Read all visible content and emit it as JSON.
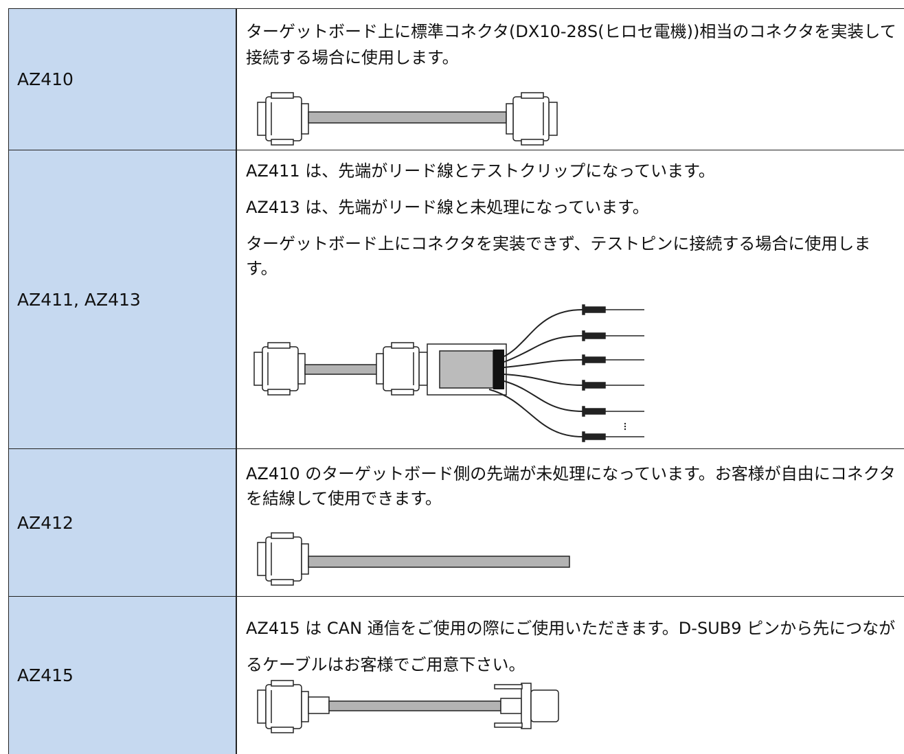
{
  "table": {
    "rows": [
      {
        "model": "AZ410",
        "paragraphs": [
          "ターゲットボード上に標準コネクタ(DX10-28S(ヒロセ電機))相当のコネクタを実装して接続する場合に使用します。"
        ]
      },
      {
        "model": "AZ411, AZ413",
        "paragraphs": [
          "AZ411 は、先端がリード線とテストクリップになっています。",
          "AZ413 は、先端がリード線と未処理になっています。",
          "ターゲットボード上にコネクタを実装できず、テストピンに接続する場合に使用します。"
        ]
      },
      {
        "model": "AZ412",
        "paragraphs": [
          "AZ410 のターゲットボード側の先端が未処理になっています。お客様が自由にコネクタを結線して使用できます。"
        ]
      },
      {
        "model": "AZ415",
        "paragraphs": [
          "AZ415 は CAN 通信をご使用の際にご使用いただきます。D-SUB9 ピンから先につながるケーブルはお客様でご用意下さい。"
        ]
      }
    ]
  }
}
